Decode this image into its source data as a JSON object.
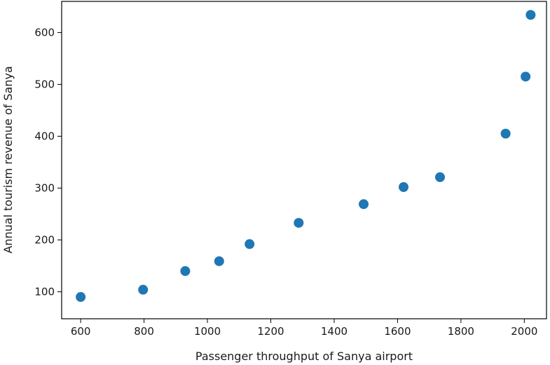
{
  "chart_data": {
    "type": "scatter",
    "title": "",
    "xlabel": "Passenger throughput of Sanya airport",
    "ylabel": "Annual tourism revenue of Sanya",
    "xlim": [
      540,
      2070
    ],
    "ylim": [
      48,
      660
    ],
    "xticks": [
      600,
      800,
      1000,
      1200,
      1400,
      1600,
      1800,
      2000
    ],
    "yticks": [
      100,
      200,
      300,
      400,
      500,
      600
    ],
    "grid": false,
    "marker_color": "#1f77b4",
    "points": [
      {
        "x": 600,
        "y": 90
      },
      {
        "x": 797,
        "y": 104
      },
      {
        "x": 930,
        "y": 140
      },
      {
        "x": 1037,
        "y": 159
      },
      {
        "x": 1133,
        "y": 192
      },
      {
        "x": 1288,
        "y": 233
      },
      {
        "x": 1493,
        "y": 269
      },
      {
        "x": 1619,
        "y": 302
      },
      {
        "x": 1734,
        "y": 321
      },
      {
        "x": 1941,
        "y": 405
      },
      {
        "x": 2004,
        "y": 515
      },
      {
        "x": 2020,
        "y": 634
      }
    ]
  }
}
